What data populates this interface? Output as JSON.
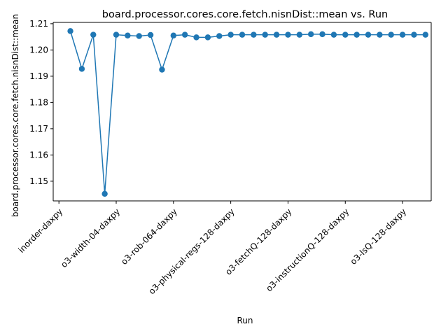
{
  "chart_data": {
    "type": "line",
    "title": "board.processor.cores.core.fetch.nisnDist::mean vs. Run",
    "xlabel": "Run",
    "ylabel": "board.processor.cores.core.fetch.nisnDist::mean",
    "ylim": [
      1.1425,
      1.2105
    ],
    "yticks": [
      1.15,
      1.16,
      1.17,
      1.18,
      1.19,
      1.2,
      1.21
    ],
    "ytick_labels": [
      "1.15",
      "1.16",
      "1.17",
      "1.18",
      "1.19",
      "1.20",
      "1.21"
    ],
    "xlim": [
      -0.5,
      32.5
    ],
    "xticks": [
      0,
      5,
      10,
      15,
      20,
      25,
      30
    ],
    "xtick_labels": [
      "inorder-daxpy",
      "o3-width-04-daxpy",
      "o3-rob-064-daxpy",
      "o3-physical-regs-128-daxpy",
      "o3-fetchQ-128-daxpy",
      "o3-instructionQ-128-daxpy",
      "o3-lsQ-128-daxpy"
    ],
    "grid": false,
    "line_color": "#1f77b4",
    "marker": "circle",
    "series": [
      {
        "x": [
          1,
          2,
          3,
          4,
          5,
          6,
          7,
          8,
          9,
          10,
          11,
          12,
          13,
          14,
          15,
          16,
          17,
          18,
          19,
          20,
          21,
          22,
          23,
          24,
          25,
          26,
          27,
          28,
          29,
          30,
          31,
          32
        ],
        "values": [
          1.2072,
          1.1928,
          1.2058,
          1.1452,
          1.2058,
          1.2055,
          1.2053,
          1.2057,
          1.1925,
          1.2055,
          1.2058,
          1.2048,
          1.2048,
          1.2053,
          1.2058,
          1.2058,
          1.2058,
          1.2058,
          1.2058,
          1.2058,
          1.2058,
          1.206,
          1.206,
          1.2058,
          1.2058,
          1.2058,
          1.2058,
          1.2058,
          1.2058,
          1.2058,
          1.2058,
          1.2058
        ]
      }
    ]
  }
}
